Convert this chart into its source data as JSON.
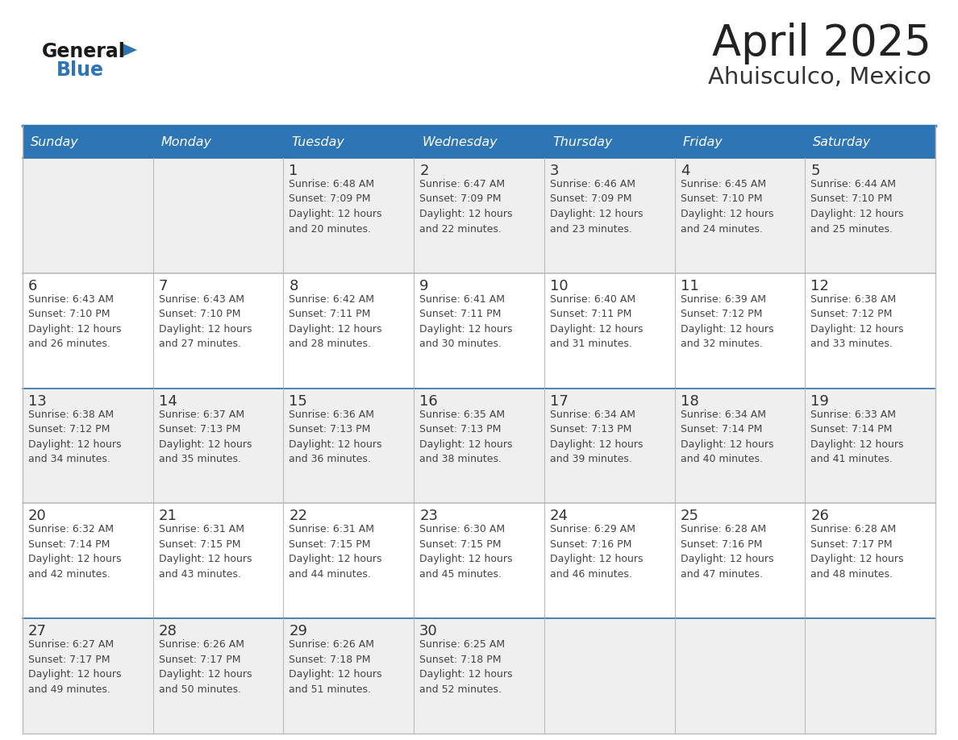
{
  "title": "April 2025",
  "subtitle": "Ahuisculco, Mexico",
  "days_of_week": [
    "Sunday",
    "Monday",
    "Tuesday",
    "Wednesday",
    "Thursday",
    "Friday",
    "Saturday"
  ],
  "header_bg": "#2E75B6",
  "header_text": "#FFFFFF",
  "row_bg_even": "#EFEFEF",
  "row_bg_odd": "#FFFFFF",
  "border_color": "#3070A0",
  "inner_border_color": "#AAAAAA",
  "date_color": "#333333",
  "info_color": "#444444",
  "title_color": "#222222",
  "subtitle_color": "#333333",
  "logo_general_color": "#1a1a1a",
  "logo_blue_color": "#2E75B6",
  "weeks": [
    [
      {
        "day": "",
        "info": ""
      },
      {
        "day": "",
        "info": ""
      },
      {
        "day": "1",
        "info": "Sunrise: 6:48 AM\nSunset: 7:09 PM\nDaylight: 12 hours\nand 20 minutes."
      },
      {
        "day": "2",
        "info": "Sunrise: 6:47 AM\nSunset: 7:09 PM\nDaylight: 12 hours\nand 22 minutes."
      },
      {
        "day": "3",
        "info": "Sunrise: 6:46 AM\nSunset: 7:09 PM\nDaylight: 12 hours\nand 23 minutes."
      },
      {
        "day": "4",
        "info": "Sunrise: 6:45 AM\nSunset: 7:10 PM\nDaylight: 12 hours\nand 24 minutes."
      },
      {
        "day": "5",
        "info": "Sunrise: 6:44 AM\nSunset: 7:10 PM\nDaylight: 12 hours\nand 25 minutes."
      }
    ],
    [
      {
        "day": "6",
        "info": "Sunrise: 6:43 AM\nSunset: 7:10 PM\nDaylight: 12 hours\nand 26 minutes."
      },
      {
        "day": "7",
        "info": "Sunrise: 6:43 AM\nSunset: 7:10 PM\nDaylight: 12 hours\nand 27 minutes."
      },
      {
        "day": "8",
        "info": "Sunrise: 6:42 AM\nSunset: 7:11 PM\nDaylight: 12 hours\nand 28 minutes."
      },
      {
        "day": "9",
        "info": "Sunrise: 6:41 AM\nSunset: 7:11 PM\nDaylight: 12 hours\nand 30 minutes."
      },
      {
        "day": "10",
        "info": "Sunrise: 6:40 AM\nSunset: 7:11 PM\nDaylight: 12 hours\nand 31 minutes."
      },
      {
        "day": "11",
        "info": "Sunrise: 6:39 AM\nSunset: 7:12 PM\nDaylight: 12 hours\nand 32 minutes."
      },
      {
        "day": "12",
        "info": "Sunrise: 6:38 AM\nSunset: 7:12 PM\nDaylight: 12 hours\nand 33 minutes."
      }
    ],
    [
      {
        "day": "13",
        "info": "Sunrise: 6:38 AM\nSunset: 7:12 PM\nDaylight: 12 hours\nand 34 minutes."
      },
      {
        "day": "14",
        "info": "Sunrise: 6:37 AM\nSunset: 7:13 PM\nDaylight: 12 hours\nand 35 minutes."
      },
      {
        "day": "15",
        "info": "Sunrise: 6:36 AM\nSunset: 7:13 PM\nDaylight: 12 hours\nand 36 minutes."
      },
      {
        "day": "16",
        "info": "Sunrise: 6:35 AM\nSunset: 7:13 PM\nDaylight: 12 hours\nand 38 minutes."
      },
      {
        "day": "17",
        "info": "Sunrise: 6:34 AM\nSunset: 7:13 PM\nDaylight: 12 hours\nand 39 minutes."
      },
      {
        "day": "18",
        "info": "Sunrise: 6:34 AM\nSunset: 7:14 PM\nDaylight: 12 hours\nand 40 minutes."
      },
      {
        "day": "19",
        "info": "Sunrise: 6:33 AM\nSunset: 7:14 PM\nDaylight: 12 hours\nand 41 minutes."
      }
    ],
    [
      {
        "day": "20",
        "info": "Sunrise: 6:32 AM\nSunset: 7:14 PM\nDaylight: 12 hours\nand 42 minutes."
      },
      {
        "day": "21",
        "info": "Sunrise: 6:31 AM\nSunset: 7:15 PM\nDaylight: 12 hours\nand 43 minutes."
      },
      {
        "day": "22",
        "info": "Sunrise: 6:31 AM\nSunset: 7:15 PM\nDaylight: 12 hours\nand 44 minutes."
      },
      {
        "day": "23",
        "info": "Sunrise: 6:30 AM\nSunset: 7:15 PM\nDaylight: 12 hours\nand 45 minutes."
      },
      {
        "day": "24",
        "info": "Sunrise: 6:29 AM\nSunset: 7:16 PM\nDaylight: 12 hours\nand 46 minutes."
      },
      {
        "day": "25",
        "info": "Sunrise: 6:28 AM\nSunset: 7:16 PM\nDaylight: 12 hours\nand 47 minutes."
      },
      {
        "day": "26",
        "info": "Sunrise: 6:28 AM\nSunset: 7:17 PM\nDaylight: 12 hours\nand 48 minutes."
      }
    ],
    [
      {
        "day": "27",
        "info": "Sunrise: 6:27 AM\nSunset: 7:17 PM\nDaylight: 12 hours\nand 49 minutes."
      },
      {
        "day": "28",
        "info": "Sunrise: 6:26 AM\nSunset: 7:17 PM\nDaylight: 12 hours\nand 50 minutes."
      },
      {
        "day": "29",
        "info": "Sunrise: 6:26 AM\nSunset: 7:18 PM\nDaylight: 12 hours\nand 51 minutes."
      },
      {
        "day": "30",
        "info": "Sunrise: 6:25 AM\nSunset: 7:18 PM\nDaylight: 12 hours\nand 52 minutes."
      },
      {
        "day": "",
        "info": ""
      },
      {
        "day": "",
        "info": ""
      },
      {
        "day": "",
        "info": ""
      }
    ]
  ]
}
